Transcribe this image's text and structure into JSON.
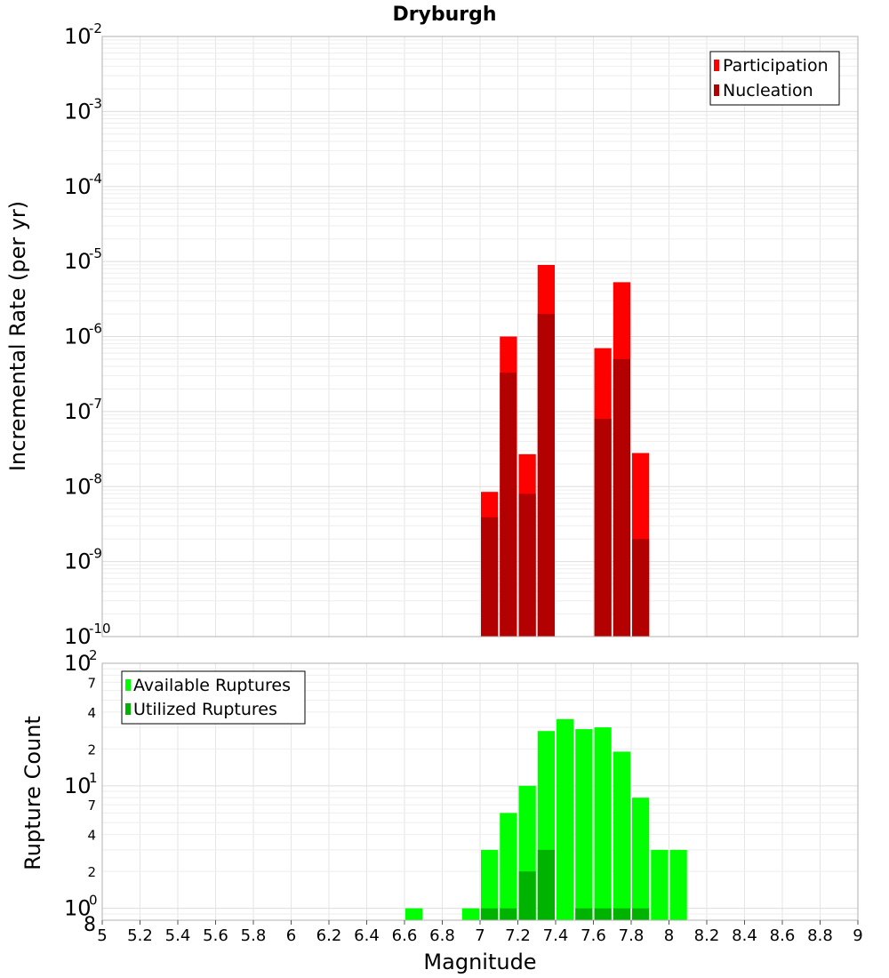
{
  "title": "Dryburgh",
  "xlabel": "Magnitude",
  "x_ticks": [
    "5",
    "5.2",
    "5.4",
    "5.6",
    "5.8",
    "6",
    "6.2",
    "6.4",
    "6.6",
    "6.8",
    "7",
    "7.2",
    "7.4",
    "7.6",
    "7.8",
    "8",
    "8.2",
    "8.4",
    "8.6",
    "8.8",
    "9"
  ],
  "colors": {
    "participation": "#ff0000",
    "nucleation": "#b30000",
    "available": "#00ff00",
    "utilized": "#00b300",
    "grid": "#e6e6e6",
    "frame": "#b0b0b0"
  },
  "chart_data": [
    {
      "type": "bar",
      "title": "Dryburgh",
      "xlabel": "Magnitude",
      "ylabel": "Incremental Rate (per yr)",
      "xlim": [
        5,
        9
      ],
      "ylim": [
        1e-10,
        0.01
      ],
      "yscale": "log",
      "bin_width": 0.1,
      "y_tick_exponents": [
        "-10",
        "-9",
        "-8",
        "-7",
        "-6",
        "-5",
        "-4",
        "-3",
        "-2"
      ],
      "y_tick_base": "10",
      "grid": true,
      "legend_position": "top-right",
      "series": [
        {
          "name": "Participation",
          "x": [
            7.05,
            7.15,
            7.25,
            7.35,
            7.65,
            7.75,
            7.85
          ],
          "values": [
            8.5e-09,
            1e-06,
            2.7e-08,
            9e-06,
            7e-07,
            5.3e-06,
            2.8e-08
          ]
        },
        {
          "name": "Nucleation",
          "x": [
            7.05,
            7.15,
            7.25,
            7.35,
            7.65,
            7.75,
            7.85
          ],
          "values": [
            3.9e-09,
            3.3e-07,
            8e-09,
            2e-06,
            8e-08,
            5e-07,
            2e-09
          ]
        }
      ]
    },
    {
      "type": "bar",
      "xlabel": "Magnitude",
      "ylabel": "Rupture Count",
      "xlim": [
        5,
        9
      ],
      "ylim": [
        0.8,
        100
      ],
      "yscale": "log",
      "bin_width": 0.1,
      "y_tick_labels": {
        "major_base": "10",
        "major_exponents": [
          "0",
          "1",
          "2"
        ],
        "minor": [
          "8",
          "2",
          "4",
          "7",
          "2",
          "4",
          "7"
        ],
        "minor_values": [
          0.8,
          2,
          4,
          7,
          20,
          40,
          70
        ]
      },
      "grid": true,
      "legend_position": "top-left",
      "series": [
        {
          "name": "Available Ruptures",
          "x": [
            6.65,
            6.95,
            7.05,
            7.15,
            7.25,
            7.35,
            7.45,
            7.55,
            7.65,
            7.75,
            7.85,
            7.95,
            8.05
          ],
          "values": [
            1,
            1,
            3,
            6,
            10,
            28,
            35,
            29,
            30,
            19,
            8,
            3,
            3
          ]
        },
        {
          "name": "Utilized Ruptures",
          "x": [
            7.05,
            7.15,
            7.25,
            7.35,
            7.55,
            7.65,
            7.75,
            7.85
          ],
          "values": [
            1,
            1,
            2,
            3,
            1,
            1,
            1,
            1
          ]
        }
      ]
    }
  ]
}
